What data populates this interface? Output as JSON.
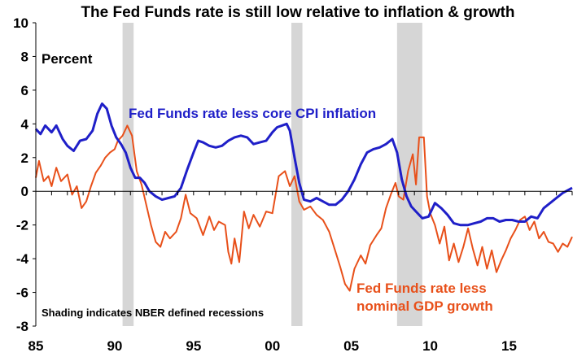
{
  "chart_data": {
    "type": "line",
    "title": "The Fed Funds rate is still low relative to inflation & growth",
    "ylabel": "Percent",
    "ylim": [
      -8,
      10
    ],
    "yticks": [
      "10",
      "8",
      "6",
      "4",
      "2",
      "0",
      "-2",
      "-4",
      "-6",
      "-8"
    ],
    "ytick_values": [
      10,
      8,
      6,
      4,
      2,
      0,
      -2,
      -4,
      -6,
      -8
    ],
    "xlim": [
      1985,
      2019
    ],
    "xticks": [
      "85",
      "90",
      "95",
      "00",
      "05",
      "10",
      "15"
    ],
    "xtick_values": [
      1985,
      1990,
      1995,
      2000,
      2005,
      2010,
      2015
    ],
    "grid": false,
    "recessions": [
      [
        1990.5,
        1991.2
      ],
      [
        2001.2,
        2001.9
      ],
      [
        2007.9,
        2009.5
      ]
    ],
    "note": "Shading indicates NBER defined recessions",
    "series": [
      {
        "name": "Fed Funds rate less core CPI inflation",
        "color": "#1f1fc8",
        "label_lines": [
          "Fed Funds rate less core CPI inflation"
        ],
        "points": [
          [
            1985.0,
            3.7
          ],
          [
            1985.3,
            3.4
          ],
          [
            1985.6,
            3.9
          ],
          [
            1986.0,
            3.5
          ],
          [
            1986.3,
            3.9
          ],
          [
            1986.7,
            3.1
          ],
          [
            1987.0,
            2.7
          ],
          [
            1987.4,
            2.4
          ],
          [
            1987.8,
            3.0
          ],
          [
            1988.2,
            3.1
          ],
          [
            1988.6,
            3.6
          ],
          [
            1988.9,
            4.6
          ],
          [
            1989.2,
            5.2
          ],
          [
            1989.5,
            4.9
          ],
          [
            1989.8,
            3.9
          ],
          [
            1990.1,
            3.2
          ],
          [
            1990.4,
            2.8
          ],
          [
            1990.7,
            2.3
          ],
          [
            1991.0,
            1.4
          ],
          [
            1991.3,
            0.8
          ],
          [
            1991.6,
            0.8
          ],
          [
            1991.9,
            0.5
          ],
          [
            1992.2,
            0.0
          ],
          [
            1992.6,
            -0.3
          ],
          [
            1993.0,
            -0.5
          ],
          [
            1993.4,
            -0.4
          ],
          [
            1993.8,
            -0.3
          ],
          [
            1994.2,
            0.2
          ],
          [
            1994.6,
            1.3
          ],
          [
            1995.0,
            2.3
          ],
          [
            1995.3,
            3.0
          ],
          [
            1995.6,
            2.9
          ],
          [
            1996.0,
            2.7
          ],
          [
            1996.4,
            2.6
          ],
          [
            1996.8,
            2.7
          ],
          [
            1997.2,
            3.0
          ],
          [
            1997.6,
            3.2
          ],
          [
            1998.0,
            3.3
          ],
          [
            1998.4,
            3.2
          ],
          [
            1998.8,
            2.8
          ],
          [
            1999.2,
            2.9
          ],
          [
            1999.6,
            3.0
          ],
          [
            2000.0,
            3.5
          ],
          [
            2000.3,
            3.8
          ],
          [
            2000.6,
            3.9
          ],
          [
            2000.9,
            4.0
          ],
          [
            2001.1,
            3.6
          ],
          [
            2001.4,
            2.0
          ],
          [
            2001.7,
            0.5
          ],
          [
            2002.0,
            -0.5
          ],
          [
            2002.4,
            -0.6
          ],
          [
            2002.8,
            -0.4
          ],
          [
            2003.2,
            -0.6
          ],
          [
            2003.6,
            -0.8
          ],
          [
            2004.0,
            -0.8
          ],
          [
            2004.4,
            -0.5
          ],
          [
            2004.8,
            0.0
          ],
          [
            2005.2,
            0.7
          ],
          [
            2005.6,
            1.6
          ],
          [
            2006.0,
            2.3
          ],
          [
            2006.4,
            2.5
          ],
          [
            2006.8,
            2.6
          ],
          [
            2007.2,
            2.8
          ],
          [
            2007.6,
            3.1
          ],
          [
            2007.9,
            2.3
          ],
          [
            2008.2,
            0.7
          ],
          [
            2008.5,
            -0.3
          ],
          [
            2008.8,
            -0.9
          ],
          [
            2009.1,
            -1.2
          ],
          [
            2009.5,
            -1.6
          ],
          [
            2009.9,
            -1.5
          ],
          [
            2010.3,
            -0.7
          ],
          [
            2010.7,
            -1.0
          ],
          [
            2011.1,
            -1.4
          ],
          [
            2011.5,
            -1.9
          ],
          [
            2011.9,
            -2.0
          ],
          [
            2012.4,
            -2.0
          ],
          [
            2012.8,
            -1.9
          ],
          [
            2013.2,
            -1.8
          ],
          [
            2013.6,
            -1.6
          ],
          [
            2014.0,
            -1.6
          ],
          [
            2014.4,
            -1.8
          ],
          [
            2014.8,
            -1.7
          ],
          [
            2015.2,
            -1.7
          ],
          [
            2015.6,
            -1.8
          ],
          [
            2016.0,
            -1.8
          ],
          [
            2016.4,
            -1.5
          ],
          [
            2016.8,
            -1.6
          ],
          [
            2017.2,
            -1.0
          ],
          [
            2017.6,
            -0.7
          ],
          [
            2018.0,
            -0.4
          ],
          [
            2018.4,
            -0.1
          ],
          [
            2018.8,
            0.1
          ],
          [
            2019.0,
            0.2
          ]
        ]
      },
      {
        "name": "Fed Funds rate less nominal GDP growth",
        "color": "#e8501a",
        "label_lines": [
          "Fed Funds rate less",
          "nominal GDP growth"
        ],
        "points": [
          [
            1985.0,
            0.8
          ],
          [
            1985.2,
            1.8
          ],
          [
            1985.5,
            0.6
          ],
          [
            1985.8,
            0.9
          ],
          [
            1986.0,
            0.3
          ],
          [
            1986.3,
            1.4
          ],
          [
            1986.6,
            0.6
          ],
          [
            1987.0,
            1.0
          ],
          [
            1987.3,
            -0.2
          ],
          [
            1987.6,
            0.3
          ],
          [
            1987.9,
            -1.0
          ],
          [
            1988.2,
            -0.6
          ],
          [
            1988.5,
            0.3
          ],
          [
            1988.8,
            1.1
          ],
          [
            1989.1,
            1.5
          ],
          [
            1989.4,
            2.0
          ],
          [
            1989.7,
            2.3
          ],
          [
            1990.0,
            2.5
          ],
          [
            1990.2,
            3.0
          ],
          [
            1990.5,
            3.3
          ],
          [
            1990.8,
            3.9
          ],
          [
            1991.1,
            3.3
          ],
          [
            1991.4,
            1.2
          ],
          [
            1991.7,
            0.4
          ],
          [
            1992.0,
            -0.8
          ],
          [
            1992.3,
            -2.0
          ],
          [
            1992.6,
            -3.0
          ],
          [
            1992.9,
            -3.3
          ],
          [
            1993.2,
            -2.4
          ],
          [
            1993.5,
            -2.8
          ],
          [
            1993.9,
            -2.4
          ],
          [
            1994.2,
            -1.6
          ],
          [
            1994.5,
            -0.2
          ],
          [
            1994.8,
            -1.3
          ],
          [
            1995.2,
            -1.6
          ],
          [
            1995.6,
            -2.6
          ],
          [
            1996.0,
            -1.5
          ],
          [
            1996.3,
            -2.3
          ],
          [
            1996.6,
            -1.8
          ],
          [
            1997.0,
            -2.0
          ],
          [
            1997.2,
            -3.6
          ],
          [
            1997.4,
            -4.3
          ],
          [
            1997.6,
            -2.8
          ],
          [
            1997.9,
            -4.2
          ],
          [
            1998.2,
            -1.2
          ],
          [
            1998.5,
            -2.2
          ],
          [
            1998.8,
            -1.4
          ],
          [
            1999.2,
            -2.1
          ],
          [
            1999.6,
            -1.2
          ],
          [
            2000.0,
            -1.3
          ],
          [
            2000.4,
            0.9
          ],
          [
            2000.8,
            1.2
          ],
          [
            2001.1,
            0.3
          ],
          [
            2001.4,
            0.9
          ],
          [
            2001.7,
            -0.6
          ],
          [
            2002.0,
            -1.1
          ],
          [
            2002.4,
            -0.9
          ],
          [
            2002.8,
            -1.4
          ],
          [
            2003.2,
            -1.7
          ],
          [
            2003.6,
            -2.4
          ],
          [
            2004.0,
            -3.6
          ],
          [
            2004.3,
            -4.5
          ],
          [
            2004.6,
            -5.5
          ],
          [
            2004.9,
            -5.9
          ],
          [
            2005.2,
            -4.6
          ],
          [
            2005.6,
            -3.8
          ],
          [
            2005.9,
            -4.3
          ],
          [
            2006.2,
            -3.2
          ],
          [
            2006.6,
            -2.6
          ],
          [
            2006.9,
            -2.2
          ],
          [
            2007.2,
            -1.0
          ],
          [
            2007.5,
            -0.2
          ],
          [
            2007.8,
            0.5
          ],
          [
            2008.0,
            -0.3
          ],
          [
            2008.3,
            -0.5
          ],
          [
            2008.6,
            1.2
          ],
          [
            2008.9,
            2.2
          ],
          [
            2009.1,
            0.4
          ],
          [
            2009.3,
            3.2
          ],
          [
            2009.6,
            3.2
          ],
          [
            2009.8,
            -0.3
          ],
          [
            2010.0,
            -1.3
          ],
          [
            2010.3,
            -2.0
          ],
          [
            2010.6,
            -3.1
          ],
          [
            2010.9,
            -2.1
          ],
          [
            2011.2,
            -4.1
          ],
          [
            2011.5,
            -3.1
          ],
          [
            2011.8,
            -4.2
          ],
          [
            2012.1,
            -3.3
          ],
          [
            2012.4,
            -2.2
          ],
          [
            2012.7,
            -3.4
          ],
          [
            2013.0,
            -4.4
          ],
          [
            2013.3,
            -3.3
          ],
          [
            2013.6,
            -4.6
          ],
          [
            2013.9,
            -3.5
          ],
          [
            2014.2,
            -4.8
          ],
          [
            2014.5,
            -4.1
          ],
          [
            2014.8,
            -3.5
          ],
          [
            2015.1,
            -2.8
          ],
          [
            2015.4,
            -2.3
          ],
          [
            2015.7,
            -1.7
          ],
          [
            2016.0,
            -1.5
          ],
          [
            2016.3,
            -2.3
          ],
          [
            2016.6,
            -1.8
          ],
          [
            2016.9,
            -2.8
          ],
          [
            2017.2,
            -2.4
          ],
          [
            2017.5,
            -3.0
          ],
          [
            2017.8,
            -3.1
          ],
          [
            2018.1,
            -3.6
          ],
          [
            2018.4,
            -3.1
          ],
          [
            2018.7,
            -3.3
          ],
          [
            2019.0,
            -2.7
          ]
        ]
      }
    ]
  }
}
